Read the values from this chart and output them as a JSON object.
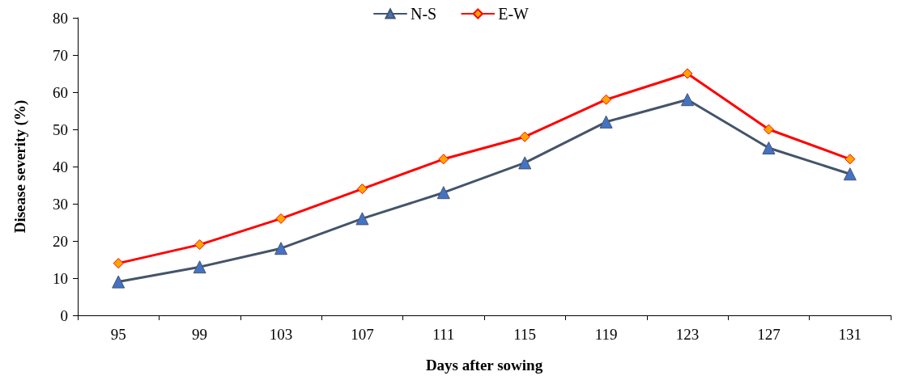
{
  "chart_data": {
    "type": "line",
    "xlabel": "Days after sowing",
    "ylabel": "Disease severity (%)",
    "categories": [
      "95",
      "99",
      "103",
      "107",
      "111",
      "115",
      "119",
      "123",
      "127",
      "131"
    ],
    "series": [
      {
        "name": "N-S",
        "color": "#44546a",
        "marker": "triangle",
        "values": [
          9,
          13,
          18,
          26,
          33,
          41,
          52,
          58,
          45,
          38
        ]
      },
      {
        "name": "E-W",
        "color": "#ff0000",
        "marker": "diamond",
        "values": [
          14,
          19,
          26,
          34,
          42,
          48,
          58,
          65,
          50,
          42
        ]
      }
    ],
    "ylim": [
      0,
      80
    ],
    "yticks": [
      0,
      10,
      20,
      30,
      40,
      50,
      60,
      70,
      80
    ],
    "grid": false,
    "legend": "top",
    "line_style": "solid"
  }
}
